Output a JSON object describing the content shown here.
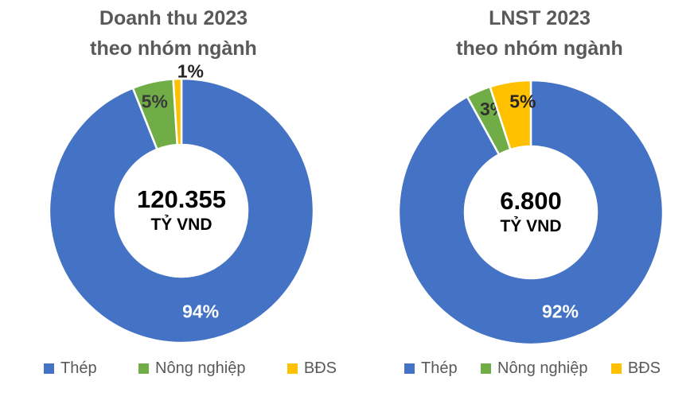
{
  "page": {
    "background": "#ffffff"
  },
  "chart_data": [
    {
      "id": "doanh-thu-2023",
      "type": "pie",
      "subtype": "donut",
      "title_lines": [
        "Doanh thu 2023",
        "theo nhóm ngành"
      ],
      "center_value": "120.355",
      "center_unit": "TỶ VND",
      "legend_position": "bottom",
      "start_angle_deg": 0,
      "direction": "clockwise",
      "segments": [
        {
          "name": "Thép",
          "pct": 94,
          "label": "94%",
          "color": "#4472C4",
          "label_color": "#FFFFFF",
          "label_frac": 0.775,
          "label_dx": 0,
          "label_dy": 0
        },
        {
          "name": "Nông nghiệp",
          "pct": 5,
          "label": "5%",
          "color": "#70AD47",
          "label_color": "#3A3A3A",
          "label_frac": 0.85,
          "label_dx": -3,
          "label_dy": 0
        },
        {
          "name": "BĐS",
          "pct": 1,
          "label": "1%",
          "color": "#FFC000",
          "label_color": "#262626",
          "label_frac": 1.07,
          "label_dx": 17,
          "label_dy": 2
        }
      ]
    },
    {
      "id": "lnst-2023",
      "type": "pie",
      "subtype": "donut",
      "title_lines": [
        "LNST 2023",
        "theo nhóm ngành"
      ],
      "center_value": "6.800",
      "center_unit": "TỶ VND",
      "legend_position": "bottom",
      "start_angle_deg": 0,
      "direction": "clockwise",
      "segments": [
        {
          "name": "Thép",
          "pct": 92,
          "label": "92%",
          "color": "#4472C4",
          "label_color": "#FFFFFF",
          "label_frac": 0.775,
          "label_dx": 5,
          "label_dy": 0
        },
        {
          "name": "Nông nghiệp",
          "pct": 3,
          "label": "3%",
          "color": "#70AD47",
          "label_color": "#303030",
          "label_frac": 0.84,
          "label_dx": 8,
          "label_dy": -2
        },
        {
          "name": "BĐS",
          "pct": 5,
          "label": "5%",
          "color": "#FFC000",
          "label_color": "#262626",
          "label_frac": 0.85,
          "label_dx": 12,
          "label_dy": 0
        }
      ]
    }
  ]
}
